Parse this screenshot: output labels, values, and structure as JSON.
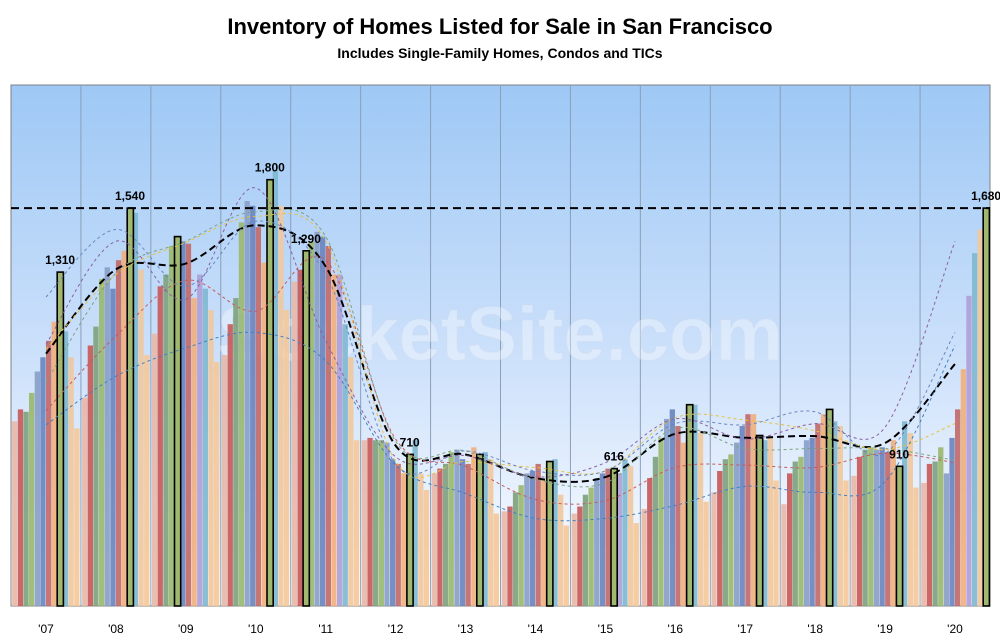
{
  "title": "Inventory of Homes Listed for Sale in San Francisco",
  "subtitle": "Includes Single-Family Homes, Condos and TICs",
  "watermark": "SocketSite.com",
  "chart_data": {
    "type": "bar",
    "title": "Inventory of Homes Listed for Sale in San Francisco",
    "subtitle": "Includes Single-Family Homes, Condos and TICs",
    "xlabel": "",
    "ylabel": "",
    "ylim": [
      0,
      2200
    ],
    "grid": "vertical lines between years",
    "legend": "none",
    "categories": [
      "'07",
      "'08",
      "'09",
      "'10",
      "'11",
      "'12",
      "'13",
      "'14",
      "'15",
      "'16",
      "'17",
      "'18",
      "'19",
      "'20"
    ],
    "monthly_inventory": [
      [
        780,
        830,
        820,
        900,
        990,
        1050,
        1120,
        1200,
        1410,
        1160,
        1050,
        750
      ],
      [
        880,
        1100,
        1180,
        1380,
        1430,
        1340,
        1460,
        1500,
        1680,
        1660,
        1420,
        1060
      ],
      [
        1150,
        1350,
        1400,
        1520,
        1560,
        1540,
        1530,
        1300,
        1400,
        1340,
        1250,
        1030
      ],
      [
        1060,
        1190,
        1300,
        1620,
        1710,
        1690,
        1600,
        1450,
        1800,
        1840,
        1690,
        1250
      ],
      [
        1370,
        1420,
        1500,
        1540,
        1580,
        1560,
        1520,
        1400,
        1400,
        1190,
        1050,
        700
      ],
      [
        700,
        710,
        700,
        700,
        690,
        620,
        600,
        560,
        640,
        700,
        560,
        490
      ],
      [
        560,
        580,
        600,
        650,
        660,
        620,
        600,
        670,
        640,
        650,
        620,
        390
      ],
      [
        400,
        420,
        480,
        510,
        560,
        570,
        600,
        530,
        610,
        620,
        470,
        340
      ],
      [
        390,
        420,
        470,
        500,
        540,
        560,
        580,
        580,
        560,
        620,
        590,
        350
      ],
      [
        410,
        540,
        630,
        710,
        790,
        830,
        760,
        690,
        850,
        850,
        730,
        440
      ],
      [
        480,
        570,
        620,
        640,
        690,
        760,
        810,
        810,
        720,
        700,
        710,
        530
      ],
      [
        430,
        560,
        610,
        630,
        700,
        710,
        770,
        810,
        830,
        780,
        760,
        530
      ],
      [
        550,
        630,
        660,
        670,
        660,
        670,
        650,
        700,
        590,
        780,
        730,
        500
      ],
      [
        520,
        600,
        610,
        670,
        560,
        710,
        830,
        1000,
        1310,
        1490,
        1590,
        1680
      ]
    ],
    "month_colors": [
      "#e8b8a8",
      "#c85a5a",
      "#7fa37f",
      "#9ab870",
      "#8aa0c8",
      "#6a86c0",
      "#c26a6a",
      "#f0b080",
      "#b0a0d8",
      "#80b8d0",
      "#f0c8a0",
      "#f5c89a"
    ],
    "highlighted_month_color": "#a0b870",
    "data_labels": [
      {
        "year": "'07",
        "text": "1,310"
      },
      {
        "year": "'08",
        "text": "1,540"
      },
      {
        "year": "'10",
        "text": "1,800"
      },
      {
        "year": "'11",
        "text": "1,290"
      },
      {
        "year": "'12",
        "text": "710"
      },
      {
        "year": "'15",
        "text": "616"
      },
      {
        "year": "'19",
        "text": "910"
      },
      {
        "year": "'20",
        "text": "1,680"
      }
    ],
    "reference_line": {
      "value": 1680,
      "style": "dashed",
      "color": "#000000"
    },
    "trend_lines": {
      "style": "dashed",
      "colors": [
        "#000000",
        "#c85a5a",
        "#7fa37f",
        "#e8c040",
        "#6a86c0",
        "#8a60a0",
        "#4080c0"
      ]
    }
  }
}
